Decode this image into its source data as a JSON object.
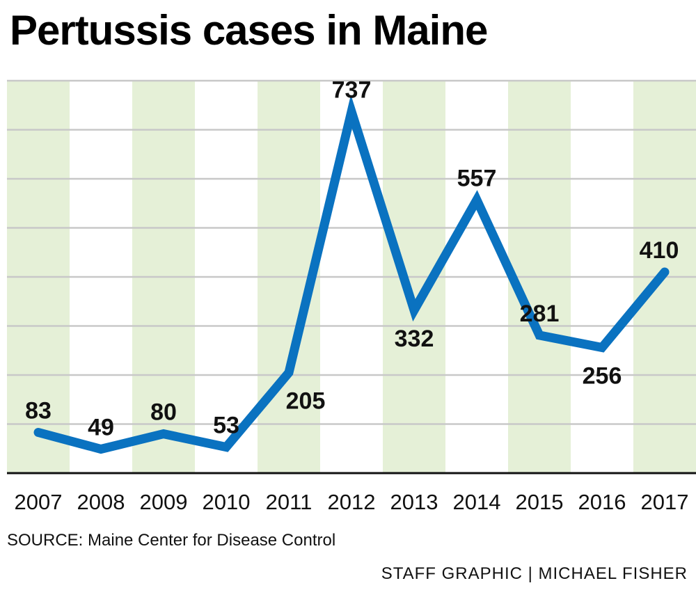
{
  "chart_data": {
    "type": "line",
    "title": "Pertussis cases in Maine",
    "xlabel": "",
    "ylabel": "",
    "categories": [
      "2007",
      "2008",
      "2009",
      "2010",
      "2011",
      "2012",
      "2013",
      "2014",
      "2015",
      "2016",
      "2017"
    ],
    "series": [
      {
        "values": [
          83,
          49,
          80,
          53,
          205,
          737,
          332,
          557,
          281,
          256,
          410
        ]
      }
    ],
    "ylim": [
      0,
      800
    ],
    "grid": true,
    "legend": "none",
    "colors": {
      "line": "#0a72c0",
      "band": "#e5f0d7",
      "grid": "#c8c8c8",
      "axis": "#111111"
    }
  },
  "footer": {
    "source": "SOURCE: Maine Center for Disease Control",
    "credit": "STAFF GRAPHIC | MICHAEL FISHER"
  }
}
